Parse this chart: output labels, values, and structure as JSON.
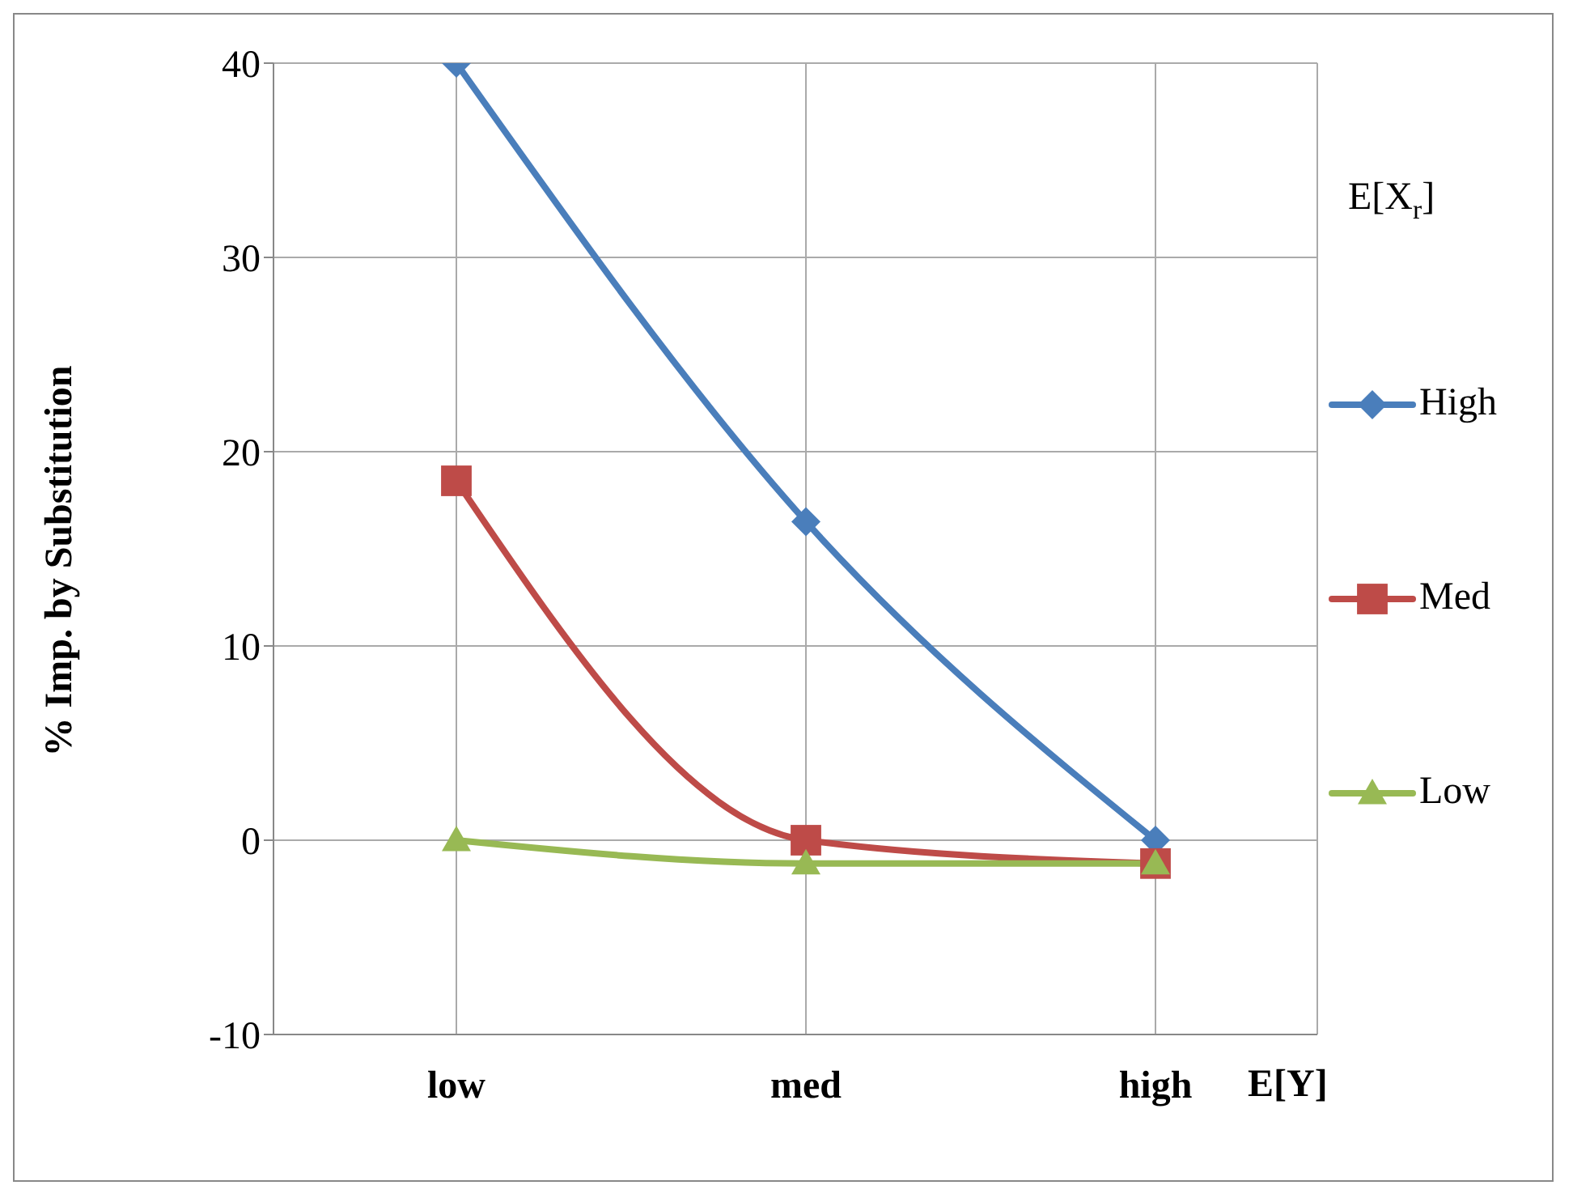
{
  "chart_data": {
    "type": "line",
    "xlabel": "E[$_{}$Y]",
    "ylabel": "% Imp. by Substitution",
    "legend_title": "E[X$_{r}$]",
    "categories": [
      "low",
      "med",
      "high"
    ],
    "series": [
      {
        "name": "High",
        "color": "#4a7ebb",
        "marker": "diamond",
        "values": [
          40,
          16.4,
          0
        ]
      },
      {
        "name": "Med",
        "color": "#be4b48",
        "marker": "square",
        "values": [
          18.5,
          0,
          -1.2
        ]
      },
      {
        "name": "Low",
        "color": "#98b954",
        "marker": "triangle",
        "values": [
          0,
          -1.2,
          -1.2
        ]
      }
    ],
    "ylim": [
      -10,
      40
    ],
    "yticks": [
      -10,
      0,
      10,
      20,
      30,
      40
    ],
    "grid": true,
    "legend": "right",
    "line_style": "solid"
  }
}
